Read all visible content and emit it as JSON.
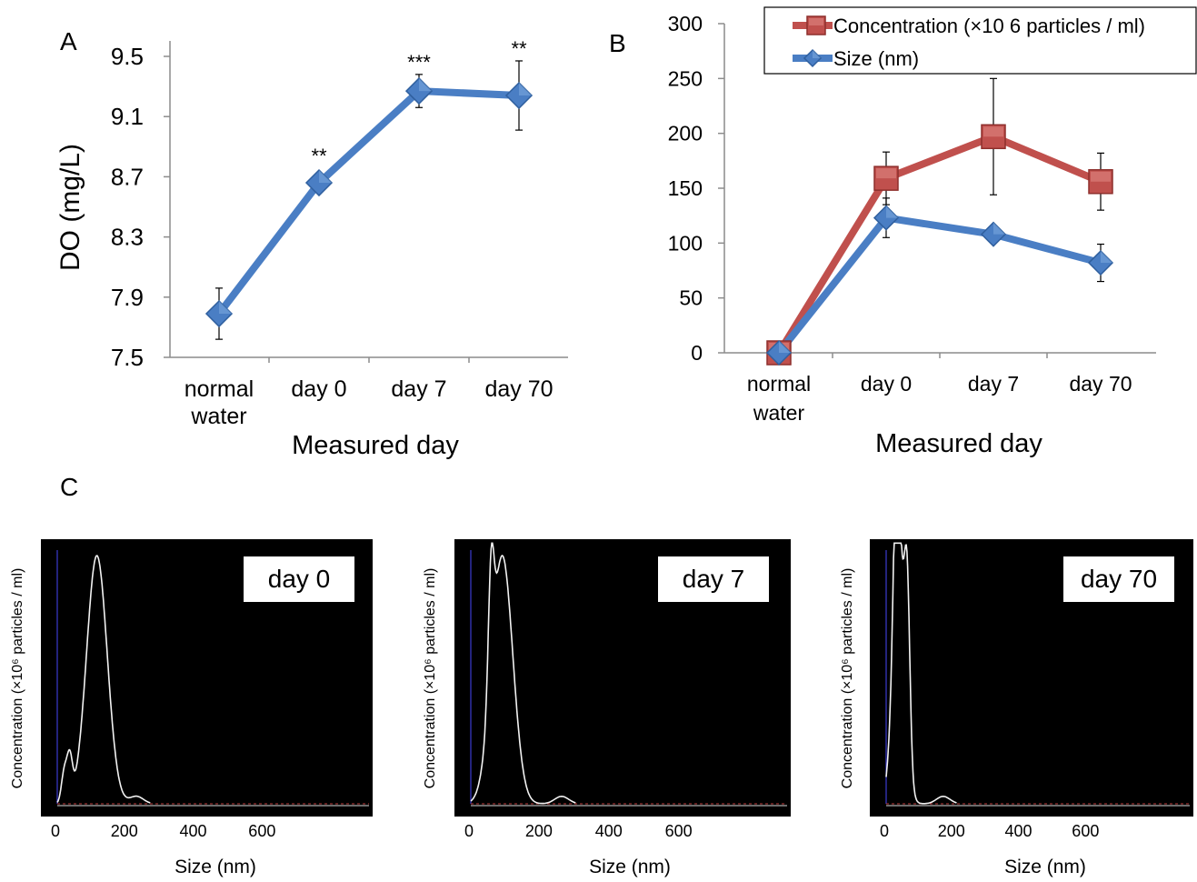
{
  "figure": {
    "panel_letters": [
      "A",
      "B",
      "C"
    ]
  },
  "chart_data": [
    {
      "panel": "A",
      "type": "line",
      "categories": [
        "normal water",
        "day 0",
        "day 7",
        "day 70"
      ],
      "series": [
        {
          "values": [
            7.79,
            8.66,
            9.27,
            9.24
          ],
          "errors": [
            0.17,
            0.03,
            0.11,
            0.23
          ],
          "color": "#4a7ec4"
        }
      ],
      "significance": [
        "",
        "**",
        "***",
        "**"
      ],
      "ylabel": "DO (mg/L)",
      "xlabel": "Measured day",
      "ylim": [
        7.5,
        9.5
      ],
      "yticks": [
        "9.5",
        "9.1",
        "8.7",
        "8.3",
        "7.9",
        "7.5"
      ],
      "grid": false
    },
    {
      "panel": "B",
      "type": "line",
      "categories": [
        "normal water",
        "day 0",
        "day 7",
        "day 70"
      ],
      "series": [
        {
          "name": "Concentration (×10 6 particles / ml)",
          "values": [
            0,
            159,
            197,
            156
          ],
          "errors": [
            0,
            24,
            53,
            26
          ],
          "color": "#c0504d",
          "marker": "square"
        },
        {
          "name": "Size (nm)",
          "values": [
            0,
            123,
            108,
            82
          ],
          "errors": [
            0,
            18,
            0,
            17
          ],
          "color": "#4a7ec4",
          "marker": "diamond"
        }
      ],
      "xlabel": "Measured day",
      "ylim": [
        0,
        300
      ],
      "yticks": [
        "300",
        "250",
        "200",
        "150",
        "100",
        "50",
        "0"
      ],
      "legend": "top-right",
      "grid": false
    },
    {
      "panel": "C",
      "type": "line",
      "subplots": [
        {
          "label": "day 0",
          "peak_size": 115,
          "minor_peaks": [
            {
              "x": 20,
              "y": 0.12
            },
            {
              "x": 36,
              "y": 0.17
            }
          ],
          "tail": 230
        },
        {
          "label": "day 7",
          "peak_size": 90,
          "minor_peaks": [
            {
              "x": 58,
              "y": 0.46
            }
          ],
          "tail": 260
        },
        {
          "label": "day 70",
          "peak_size": 38,
          "minor_peaks": [
            {
              "x": 30,
              "y": 0.52
            },
            {
              "x": 63,
              "y": 0.61
            }
          ],
          "tail": 170
        }
      ],
      "xlabel": "Size (nm)",
      "ylabel": "Concentration (×10⁶ particles / ml)",
      "xticks": [
        "0",
        "200",
        "400",
        "600"
      ],
      "xlim": [
        0,
        900
      ]
    }
  ]
}
